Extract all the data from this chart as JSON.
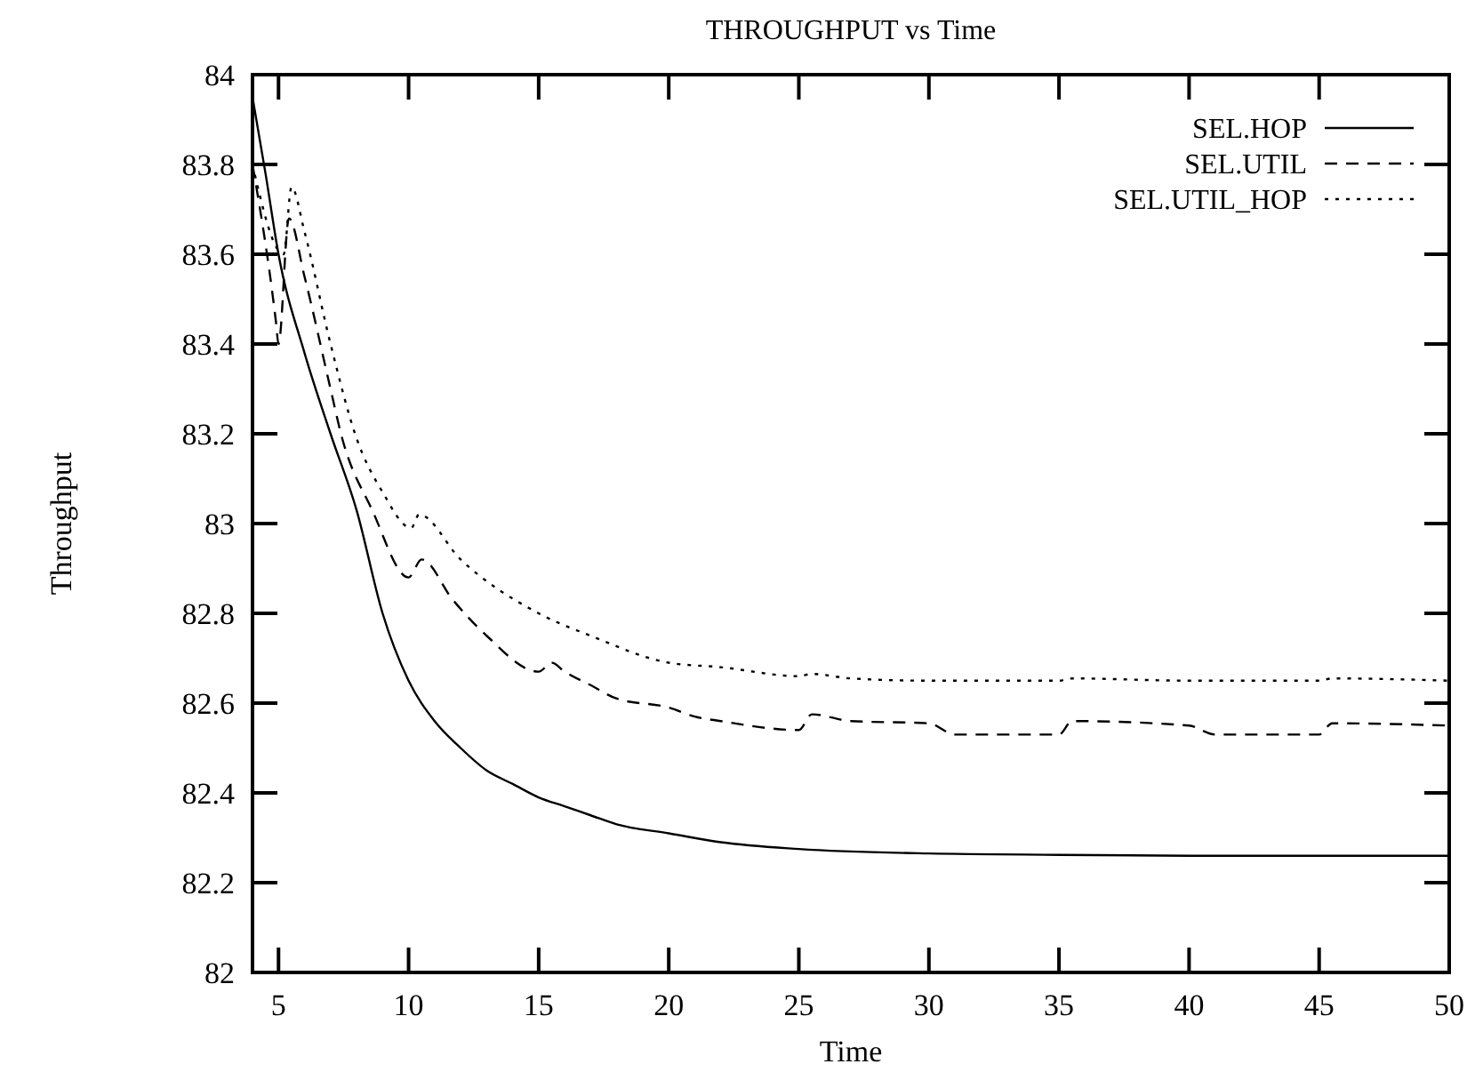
{
  "chart_data": {
    "type": "line",
    "title": "THROUGHPUT vs Time",
    "xlabel": "Time",
    "ylabel": "Throughput",
    "xlim": [
      4,
      50
    ],
    "xticks": [
      5,
      10,
      15,
      20,
      25,
      30,
      35,
      40,
      45,
      50
    ],
    "ylim": [
      82,
      84
    ],
    "yticks": [
      82,
      82.2,
      82.4,
      82.6,
      82.8,
      83,
      83.2,
      83.4,
      83.6,
      83.8,
      84
    ],
    "legend": "top right",
    "grid": false,
    "series": [
      {
        "name": "SEL.HOP",
        "color": "#000000",
        "line_style": "solid",
        "x": [
          4,
          4.5,
          5,
          6,
          7,
          8,
          9,
          10,
          11,
          12,
          13,
          14,
          15,
          16,
          17,
          18,
          20,
          22,
          25,
          30,
          35,
          40,
          50
        ],
        "values": [
          83.95,
          83.78,
          83.6,
          83.38,
          83.2,
          83.03,
          82.8,
          82.65,
          82.56,
          82.5,
          82.45,
          82.42,
          82.39,
          82.37,
          82.35,
          82.33,
          82.31,
          82.29,
          82.275,
          82.265,
          82.262,
          82.26,
          82.26
        ]
      },
      {
        "name": "SEL.UTIL",
        "color": "#000000",
        "line_style": "dashed",
        "x": [
          4,
          4.9,
          5,
          5.4,
          6,
          7,
          7.4,
          8.6,
          10,
          10.5,
          11.7,
          13,
          15,
          15.5,
          16,
          17,
          18,
          20,
          21,
          22,
          25,
          25.5,
          27,
          30,
          31,
          35,
          35.5,
          40,
          41,
          45,
          45.5,
          50
        ],
        "values": [
          83.8,
          83.45,
          83.4,
          83.68,
          83.55,
          83.3,
          83.2,
          83.03,
          82.88,
          82.92,
          82.83,
          82.75,
          82.67,
          82.69,
          82.67,
          82.64,
          82.61,
          82.59,
          82.57,
          82.56,
          82.54,
          82.575,
          82.56,
          82.555,
          82.53,
          82.53,
          82.56,
          82.55,
          82.53,
          82.53,
          82.555,
          82.55
        ]
      },
      {
        "name": "SEL.UTIL_HOP",
        "color": "#000000",
        "line_style": "dotted",
        "x": [
          4,
          5.2,
          5.5,
          6,
          7,
          8,
          9,
          10.1,
          10.4,
          12,
          15,
          17,
          20,
          22,
          25,
          25.5,
          27,
          30,
          35,
          35.5,
          40,
          45,
          45.5,
          50
        ],
        "values": [
          83.8,
          83.6,
          83.75,
          83.65,
          83.4,
          83.19,
          83.07,
          82.99,
          83.02,
          82.92,
          82.8,
          82.75,
          82.69,
          82.68,
          82.66,
          82.665,
          82.655,
          82.65,
          82.65,
          82.655,
          82.65,
          82.65,
          82.655,
          82.65
        ]
      }
    ]
  }
}
